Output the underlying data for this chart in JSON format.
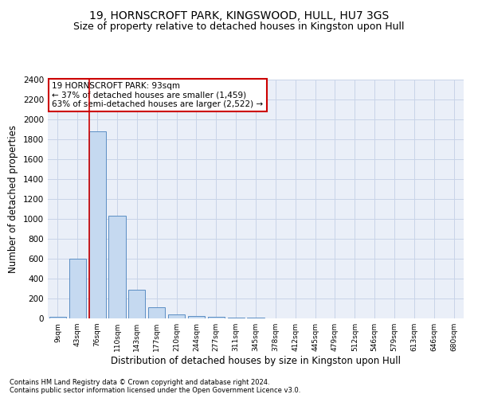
{
  "title1": "19, HORNSCROFT PARK, KINGSWOOD, HULL, HU7 3GS",
  "title2": "Size of property relative to detached houses in Kingston upon Hull",
  "xlabel": "Distribution of detached houses by size in Kingston upon Hull",
  "ylabel": "Number of detached properties",
  "footnote1": "Contains HM Land Registry data © Crown copyright and database right 2024.",
  "footnote2": "Contains public sector information licensed under the Open Government Licence v3.0.",
  "bar_labels": [
    "9sqm",
    "43sqm",
    "76sqm",
    "110sqm",
    "143sqm",
    "177sqm",
    "210sqm",
    "244sqm",
    "277sqm",
    "311sqm",
    "345sqm",
    "378sqm",
    "412sqm",
    "445sqm",
    "479sqm",
    "512sqm",
    "546sqm",
    "579sqm",
    "613sqm",
    "646sqm",
    "680sqm"
  ],
  "bar_values": [
    15,
    600,
    1880,
    1030,
    290,
    115,
    40,
    25,
    15,
    10,
    5,
    3,
    2,
    1,
    1,
    0,
    0,
    0,
    0,
    0,
    0
  ],
  "bar_color": "#c5d9f0",
  "bar_edge_color": "#5b8ec4",
  "bar_edge_width": 0.7,
  "vline_color": "#cc0000",
  "annotation_title": "19 HORNSCROFT PARK: 93sqm",
  "annotation_line2": "← 37% of detached houses are smaller (1,459)",
  "annotation_line3": "63% of semi-detached houses are larger (2,522) →",
  "annotation_box_color": "#ffffff",
  "annotation_box_edge_color": "#cc0000",
  "ylim": [
    0,
    2400
  ],
  "yticks": [
    0,
    200,
    400,
    600,
    800,
    1000,
    1200,
    1400,
    1600,
    1800,
    2000,
    2200,
    2400
  ],
  "grid_color": "#c8d4e8",
  "bg_color": "#eaeff8",
  "title1_fontsize": 10,
  "title2_fontsize": 9,
  "xlabel_fontsize": 8.5,
  "ylabel_fontsize": 8.5,
  "footnote_fontsize": 6.0,
  "annot_fontsize": 7.5,
  "xtick_fontsize": 6.5,
  "ytick_fontsize": 7.5
}
